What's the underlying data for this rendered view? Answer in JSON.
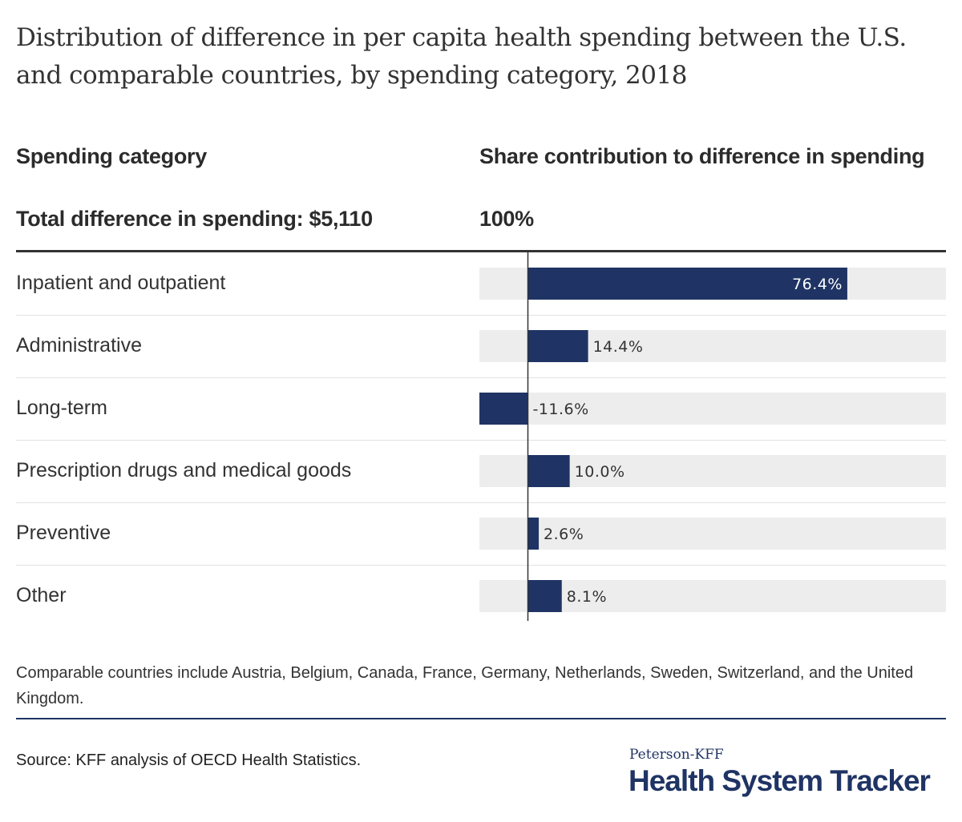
{
  "title": "Distribution of difference in per capita health spending between the U.S. and comparable countries, by spending category, 2018",
  "headers": {
    "category": "Spending category",
    "share": "Share contribution to difference in spending",
    "total": "Total difference in spending: $5,110",
    "total_pct": "100%"
  },
  "chart_data": {
    "type": "bar",
    "orientation": "horizontal",
    "categories": [
      "Inpatient and outpatient",
      "Administrative",
      "Long-term",
      "Prescription drugs and medical goods",
      "Preventive",
      "Other"
    ],
    "values": [
      76.4,
      14.4,
      -11.6,
      10.0,
      2.6,
      8.1
    ],
    "value_labels": [
      "76.4%",
      "14.4%",
      "-11.6%",
      "10.0%",
      "2.6%",
      "8.1%"
    ],
    "xlim": [
      -11.6,
      100
    ],
    "colors": {
      "bar": "#1f3464",
      "track": "#ededed",
      "axis": "#333333"
    }
  },
  "note": "Comparable countries include Austria, Belgium, Canada, France, Germany, Netherlands, Sweden, Switzerland, and the United Kingdom.",
  "source": "Source: KFF analysis of OECD Health Statistics.",
  "logo": {
    "small": "Peterson-KFF",
    "big": "Health System Tracker"
  }
}
